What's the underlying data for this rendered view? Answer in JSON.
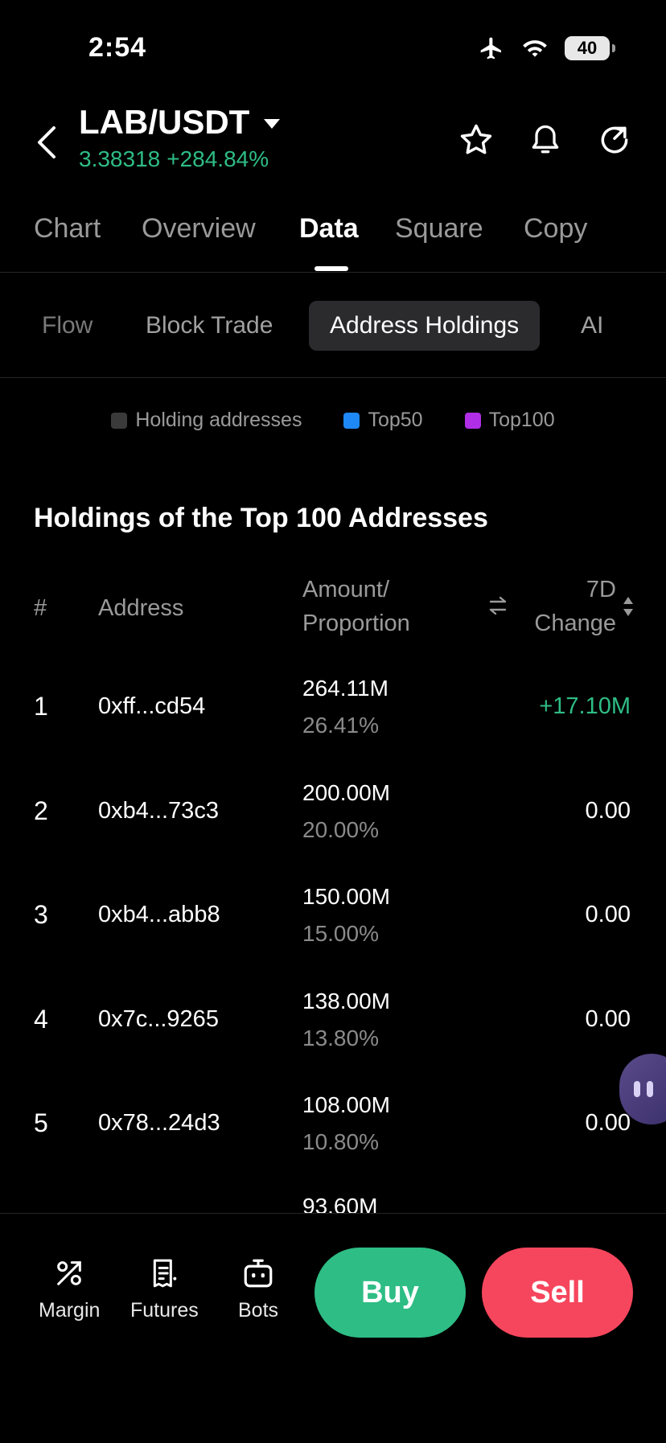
{
  "status_bar": {
    "time": "2:54",
    "battery": "40"
  },
  "header": {
    "pair": "LAB/USDT",
    "price": "3.38318",
    "change": "+284.84%"
  },
  "main_tabs": [
    {
      "label": "Chart"
    },
    {
      "label": "Overview"
    },
    {
      "label": "Data"
    },
    {
      "label": "Square"
    },
    {
      "label": "Copy"
    }
  ],
  "sub_tabs": [
    {
      "label": "Flow"
    },
    {
      "label": "Block Trade"
    },
    {
      "label": "Address Holdings"
    },
    {
      "label": "AI"
    }
  ],
  "legend": [
    {
      "label": "Holding addresses",
      "color": "#3a3a3a"
    },
    {
      "label": "Top50",
      "color": "#1e88f5"
    },
    {
      "label": "Top100",
      "color": "#b02ee6"
    }
  ],
  "section": {
    "title": "Holdings of the Top 100 Addresses",
    "columns": {
      "rank": "#",
      "address": "Address",
      "amount_line1": "Amount/",
      "amount_line2": "Proportion",
      "change_line1": "7D",
      "change_line2": "Change"
    }
  },
  "holders": [
    {
      "rank": "1",
      "address": "0xff...cd54",
      "amount": "264.11M",
      "proportion": "26.41%",
      "change": "+17.10M",
      "positive": true
    },
    {
      "rank": "2",
      "address": "0xb4...73c3",
      "amount": "200.00M",
      "proportion": "20.00%",
      "change": "0.00",
      "positive": false
    },
    {
      "rank": "3",
      "address": "0xb4...abb8",
      "amount": "150.00M",
      "proportion": "15.00%",
      "change": "0.00",
      "positive": false
    },
    {
      "rank": "4",
      "address": "0x7c...9265",
      "amount": "138.00M",
      "proportion": "13.80%",
      "change": "0.00",
      "positive": false
    },
    {
      "rank": "5",
      "address": "0x78...24d3",
      "amount": "108.00M",
      "proportion": "10.80%",
      "change": "0.00",
      "positive": false
    }
  ],
  "partial_row": {
    "amount": "93.60M"
  },
  "bottom_bar": {
    "margin": "Margin",
    "futures": "Futures",
    "bots": "Bots",
    "buy": "Buy",
    "sell": "Sell"
  },
  "colors": {
    "positive": "#2ebd85",
    "negative": "#f6465d",
    "background": "#000000"
  }
}
